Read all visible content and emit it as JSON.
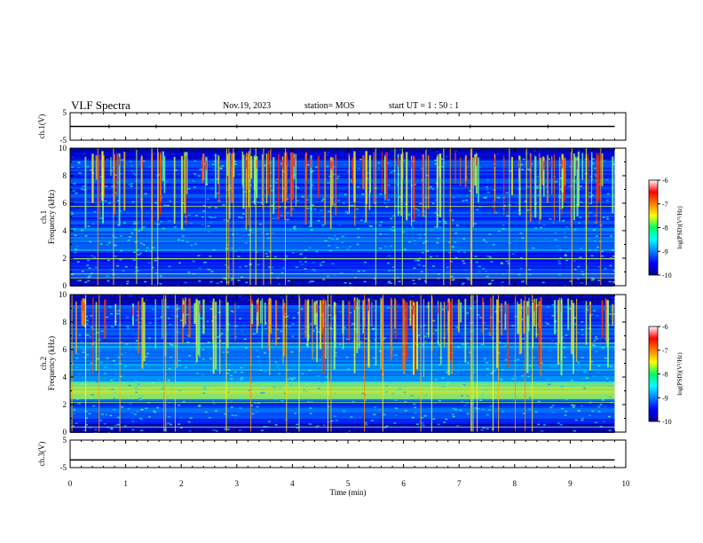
{
  "header": {
    "title": "VLF Spectra",
    "date": "Nov.19, 2023",
    "station": "station= MOS",
    "start": "start  UT =   1 : 50 : 1"
  },
  "chart_data": [
    {
      "type": "line",
      "panel": "ch1-waveform",
      "ylabel": "ch.1(V)",
      "ylim": [
        -5,
        5
      ],
      "yticks": [
        "5",
        "-5"
      ],
      "xlim": [
        0,
        10
      ],
      "series": [
        {
          "x": [
            0,
            9.8
          ],
          "values": [
            0,
            0
          ]
        }
      ]
    },
    {
      "type": "heatmap",
      "panel": "ch1-spectrogram",
      "ylabel": "ch.1\nFrequency (kHz)",
      "ylim": [
        0,
        10
      ],
      "yticks": [
        "0",
        "2",
        "4",
        "6",
        "8",
        "10"
      ],
      "xlim": [
        0,
        10
      ],
      "data_end_min": 9.8,
      "colorbar": {
        "label": "log(PSD)(V²/Hz)",
        "range": [
          -10,
          -6
        ],
        "ticks": [
          "-6",
          "-7",
          "-8",
          "-9",
          "-10"
        ]
      }
    },
    {
      "type": "heatmap",
      "panel": "ch2-spectrogram",
      "ylabel": "ch.2\nFrequency (kHz)",
      "ylim": [
        0,
        10
      ],
      "yticks": [
        "0",
        "2",
        "4",
        "6",
        "8",
        "10"
      ],
      "xlim": [
        0,
        10
      ],
      "data_end_min": 9.8,
      "colorbar": {
        "label": "log(PSD)(V²/Hz)",
        "range": [
          -10,
          -6
        ],
        "ticks": [
          "-6",
          "-7",
          "-8",
          "-9",
          "-10"
        ]
      }
    },
    {
      "type": "line",
      "panel": "ch3-waveform",
      "ylabel": "ch.3(V)",
      "ylim": [
        -5,
        5
      ],
      "yticks": [
        "5",
        "-5"
      ],
      "xlim": [
        0,
        10
      ],
      "xlabel": "Time  (min)",
      "xticks": [
        "0",
        "1",
        "2",
        "3",
        "4",
        "5",
        "6",
        "7",
        "8",
        "9",
        "10"
      ],
      "series": [
        {
          "x": [
            0,
            9.8
          ],
          "values": [
            -2.2,
            -2.2
          ]
        }
      ]
    }
  ]
}
